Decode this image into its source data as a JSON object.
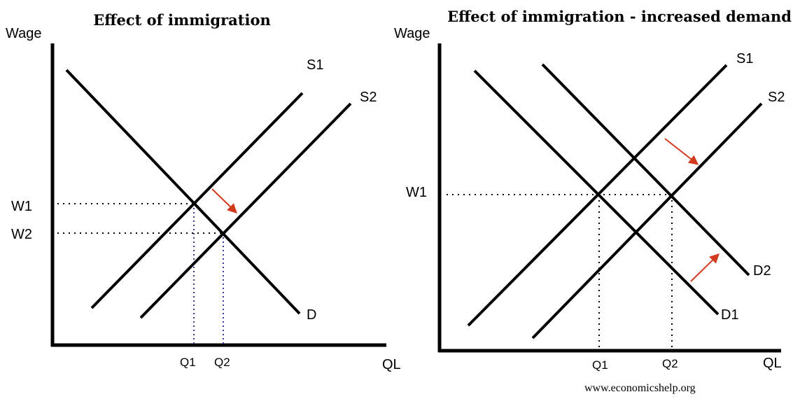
{
  "left": {
    "title": "Effect of immigration",
    "y_label": "Wage",
    "x_label": "QL",
    "curves": {
      "s1": "S1",
      "s2": "S2",
      "d": "D"
    },
    "y_ticks": {
      "w1": "W1",
      "w2": "W2"
    },
    "x_ticks": {
      "q1": "Q1",
      "q2": "Q2"
    }
  },
  "right": {
    "title": "Effect of immigration - increased demand",
    "y_label": "Wage",
    "x_label": "QL",
    "curves": {
      "s1": "S1",
      "s2": "S2",
      "d1": "D1",
      "d2": "D2"
    },
    "y_ticks": {
      "w1": "W1"
    },
    "x_ticks": {
      "q1": "Q1",
      "q2": "Q2"
    }
  },
  "credit": "www.economicshelp.org",
  "colors": {
    "curves": "#000000",
    "arrows": "#d23a1e",
    "guides_left": "#3a3a9a"
  }
}
